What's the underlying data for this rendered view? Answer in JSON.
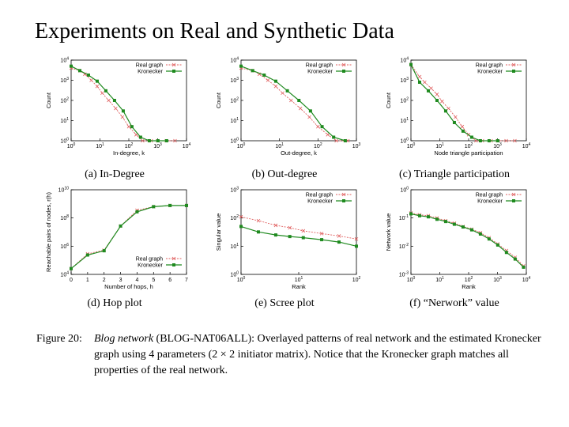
{
  "slide": {
    "title": "Experiments on Real and Synthetic Data"
  },
  "legend_labels": [
    "Real graph",
    "Kronecker"
  ],
  "colors": {
    "real": "#e06060",
    "kronecker": "#1f8a1f",
    "axis": "#000000"
  },
  "figure": {
    "caption_label": "Figure 20:",
    "caption_italic": "Blog network",
    "caption_open": " (",
    "caption_dataset": "BLOG-NAT06ALL",
    "caption_rest": "): Overlayed patterns of real network and the estimated Kronecker graph using 4 parameters (2 × 2 initiator matrix). Notice that the Kronecker graph matches all properties of the real network."
  },
  "chart_data": [
    {
      "type": "line",
      "caption": "(a) In-Degree",
      "xlabel": "In-degree, k",
      "ylabel": "Count",
      "xscale": "log",
      "yscale": "log",
      "xticks": [
        "10^0",
        "10^1",
        "10^2",
        "10^3",
        "10^4"
      ],
      "yticks": [
        "10^0",
        "10^1",
        "10^2",
        "10^3",
        "10^4"
      ],
      "xlim": [
        1,
        10000
      ],
      "ylim": [
        1,
        10000
      ],
      "legend": "top-right",
      "series": [
        {
          "name": "Real graph",
          "x": [
            1,
            2,
            3,
            5,
            8,
            12,
            20,
            35,
            60,
            100,
            180,
            300,
            600,
            1000,
            2000,
            4000
          ],
          "y": [
            4000,
            3000,
            2000,
            1000,
            500,
            230,
            100,
            40,
            15,
            5,
            2,
            1,
            1,
            1,
            1,
            1
          ]
        },
        {
          "name": "Kronecker",
          "x": [
            1,
            2,
            4,
            8,
            16,
            32,
            64,
            128,
            256,
            512,
            1024,
            2048
          ],
          "y": [
            5000,
            3000,
            1800,
            900,
            300,
            100,
            30,
            5,
            1.5,
            1,
            1,
            1
          ]
        }
      ]
    },
    {
      "type": "line",
      "caption": "(b) Out-degree",
      "xlabel": "Out-degree, k",
      "ylabel": "Count",
      "xscale": "log",
      "yscale": "log",
      "xticks": [
        "10^0",
        "10^1",
        "10^2",
        "10^3"
      ],
      "yticks": [
        "10^0",
        "10^1",
        "10^2",
        "10^3",
        "10^4"
      ],
      "xlim": [
        1,
        1000
      ],
      "ylim": [
        1,
        10000
      ],
      "legend": "top-right",
      "series": [
        {
          "name": "Real graph",
          "x": [
            1,
            2,
            3,
            5,
            8,
            12,
            20,
            35,
            60,
            100,
            180,
            300,
            600
          ],
          "y": [
            4000,
            3000,
            2000,
            1000,
            500,
            230,
            100,
            40,
            15,
            5,
            2,
            1,
            1
          ]
        },
        {
          "name": "Kronecker",
          "x": [
            1,
            2,
            4,
            8,
            16,
            32,
            64,
            128,
            256,
            512
          ],
          "y": [
            5000,
            3000,
            1800,
            900,
            300,
            100,
            30,
            5,
            1.5,
            1
          ]
        }
      ]
    },
    {
      "type": "line",
      "caption": "(c) Triangle participation",
      "xlabel": "Node triangle participation",
      "ylabel": "Count",
      "xscale": "log",
      "yscale": "log",
      "xticks": [
        "10^0",
        "10^1",
        "10^2",
        "10^3",
        "10^4"
      ],
      "yticks": [
        "10^0",
        "10^1",
        "10^2",
        "10^3",
        "10^4"
      ],
      "xlim": [
        1,
        10000
      ],
      "ylim": [
        1,
        10000
      ],
      "legend": "top-right",
      "series": [
        {
          "name": "Real graph",
          "x": [
            1,
            2,
            3,
            5,
            8,
            12,
            20,
            35,
            60,
            100,
            180,
            300,
            600,
            1000,
            2000,
            4000
          ],
          "y": [
            6000,
            1500,
            800,
            400,
            200,
            90,
            40,
            15,
            5,
            2,
            1,
            1,
            1,
            1,
            1,
            1
          ]
        },
        {
          "name": "Kronecker",
          "x": [
            1,
            2,
            4,
            8,
            16,
            32,
            64,
            128,
            256,
            512,
            1024
          ],
          "y": [
            6000,
            800,
            300,
            100,
            30,
            8,
            3,
            1.5,
            1,
            1,
            1
          ]
        }
      ]
    },
    {
      "type": "line",
      "caption": "(d) Hop plot",
      "xlabel": "Number of hops, h",
      "ylabel": "Reachable pairs of nodes, r(h)",
      "xscale": "linear",
      "yscale": "log",
      "xticks": [
        "0",
        "1",
        "2",
        "3",
        "4",
        "5",
        "6",
        "7"
      ],
      "yticks": [
        "10^4",
        "10^6",
        "10^8",
        "10^10"
      ],
      "xlim": [
        0,
        7
      ],
      "ylim": [
        10000,
        100000000000
      ],
      "legend": "bottom-right",
      "series": [
        {
          "name": "Real graph",
          "x": [
            0,
            1,
            2,
            3,
            4,
            5,
            6,
            7
          ],
          "y": [
            30000,
            500000,
            1000000,
            100000000,
            2000000000,
            4000000000,
            5000000000,
            5000000000
          ]
        },
        {
          "name": "Kronecker",
          "x": [
            0,
            1,
            2,
            3,
            4,
            5,
            6,
            7
          ],
          "y": [
            30000,
            400000,
            900000,
            100000000,
            1500000000,
            4000000000,
            5000000000,
            5000000000
          ]
        }
      ]
    },
    {
      "type": "line",
      "caption": "(e) Scree plot",
      "xlabel": "Rank",
      "ylabel": "Singular value",
      "xscale": "log",
      "yscale": "log",
      "xticks": [
        "10^0",
        "10^1",
        "10^2"
      ],
      "yticks": [
        "10^0",
        "10^1",
        "10^2",
        "10^3"
      ],
      "xlim": [
        1,
        100
      ],
      "ylim": [
        1,
        1000
      ],
      "legend": "top-right",
      "series": [
        {
          "name": "Real graph",
          "x": [
            1,
            2,
            4,
            7,
            12,
            25,
            50,
            100
          ],
          "y": [
            110,
            80,
            55,
            45,
            35,
            28,
            23,
            18
          ]
        },
        {
          "name": "Kronecker",
          "x": [
            1,
            2,
            4,
            7,
            12,
            25,
            50,
            100
          ],
          "y": [
            50,
            32,
            25,
            22,
            20,
            17,
            14,
            10
          ]
        }
      ]
    },
    {
      "type": "line",
      "caption": "(f) “Nerwork” value",
      "xlabel": "Rank",
      "ylabel": "Network value",
      "xscale": "log",
      "yscale": "log",
      "xticks": [
        "10^0",
        "10^1",
        "10^2",
        "10^3",
        "10^4"
      ],
      "yticks": [
        "10^-3",
        "10^-2",
        "10^-1",
        "10^0"
      ],
      "xlim": [
        1,
        10000
      ],
      "ylim": [
        0.001,
        1
      ],
      "legend": "top-right",
      "series": [
        {
          "name": "Real graph",
          "x": [
            1,
            2,
            4,
            8,
            16,
            32,
            64,
            128,
            256,
            512,
            1024,
            2048,
            4096,
            8000
          ],
          "y": [
            0.15,
            0.13,
            0.12,
            0.1,
            0.08,
            0.065,
            0.05,
            0.04,
            0.03,
            0.02,
            0.012,
            0.007,
            0.004,
            0.002
          ]
        },
        {
          "name": "Kronecker",
          "x": [
            1,
            2,
            4,
            8,
            16,
            32,
            64,
            128,
            256,
            512,
            1024,
            2048,
            4096,
            8000
          ],
          "y": [
            0.14,
            0.12,
            0.11,
            0.09,
            0.075,
            0.06,
            0.048,
            0.038,
            0.027,
            0.018,
            0.011,
            0.006,
            0.0035,
            0.0018
          ]
        }
      ]
    }
  ]
}
